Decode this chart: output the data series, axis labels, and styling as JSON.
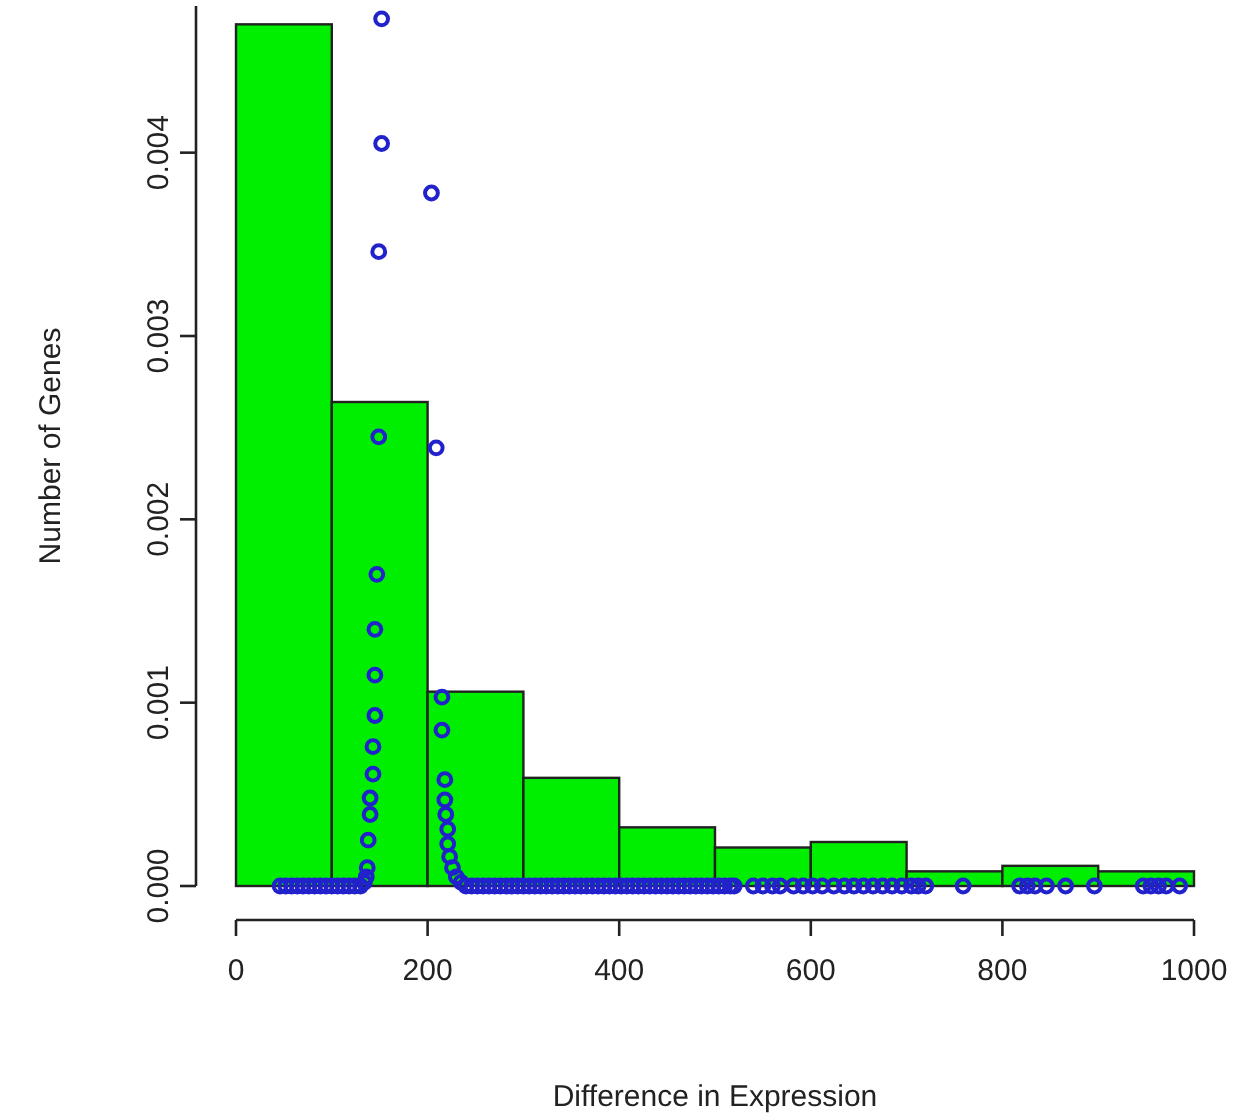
{
  "chart_data": {
    "type": "histogram",
    "xlabel": "Difference in Expression",
    "ylabel": "Number of Genes",
    "bins": [
      0,
      100,
      200,
      300,
      400,
      500,
      600,
      700,
      800,
      900,
      1000
    ],
    "values": [
      0.0047,
      0.00264,
      0.00106,
      0.00059,
      0.00032,
      0.00021,
      0.00024,
      8e-05,
      0.00011,
      8e-05
    ],
    "color": "#00ee00",
    "xlim": [
      0,
      1000
    ],
    "xticks": [
      0,
      200,
      400,
      600,
      800,
      1000
    ],
    "ylim": [
      0,
      0.0048
    ],
    "yticks": [
      {
        "value": 0,
        "label": "0.000"
      },
      {
        "value": 0.001,
        "label": "0.001"
      },
      {
        "value": 0.002,
        "label": "0.002"
      },
      {
        "value": 0.003,
        "label": "0.003"
      },
      {
        "value": 0.004,
        "label": "0.004"
      }
    ],
    "grid": false,
    "marker": "circle",
    "series": [
      {
        "type": "scatter",
        "color": "#2222cc",
        "x": [
          46,
          52,
          58,
          64,
          70,
          76,
          82,
          88,
          94,
          100,
          106,
          112,
          118,
          124,
          130,
          134,
          136,
          137,
          138,
          140,
          140,
          143,
          143,
          145,
          145,
          145,
          147,
          149,
          149,
          152,
          152,
          204,
          209,
          215,
          215,
          218,
          218,
          219,
          221,
          221,
          223,
          226,
          230,
          235,
          240,
          246,
          252,
          258,
          264,
          270,
          276,
          282,
          288,
          294,
          300,
          306,
          312,
          318,
          324,
          330,
          336,
          342,
          348,
          354,
          360,
          366,
          372,
          378,
          384,
          390,
          396,
          402,
          408,
          414,
          420,
          426,
          432,
          438,
          444,
          450,
          456,
          462,
          468,
          474,
          480,
          486,
          492,
          498,
          504,
          510,
          516,
          520,
          540,
          550,
          560,
          568,
          582,
          592,
          602,
          612,
          624,
          635,
          645,
          655,
          665,
          675,
          685,
          695,
          705,
          712,
          720,
          759,
          818,
          826,
          834,
          846,
          866,
          896,
          947,
          955,
          963,
          971,
          985
        ],
        "values": [
          0,
          0,
          0,
          0,
          0,
          0,
          0,
          0,
          0,
          0,
          0,
          0,
          0,
          0,
          0,
          2e-05,
          5e-05,
          0.0001,
          0.00025,
          0.00039,
          0.00048,
          0.00061,
          0.00076,
          0.00093,
          0.00115,
          0.0014,
          0.0017,
          0.00245,
          0.00346,
          0.00405,
          0.00473,
          0.00378,
          0.00239,
          0.00103,
          0.00085,
          0.00058,
          0.00047,
          0.00039,
          0.00031,
          0.00023,
          0.00016,
          0.0001,
          5e-05,
          2e-05,
          0,
          0,
          0,
          0,
          0,
          0,
          0,
          0,
          0,
          0,
          0,
          0,
          0,
          0,
          0,
          0,
          0,
          0,
          0,
          0,
          0,
          0,
          0,
          0,
          0,
          0,
          0,
          0,
          0,
          0,
          0,
          0,
          0,
          0,
          0,
          0,
          0,
          0,
          0,
          0,
          0,
          0,
          0,
          0,
          0,
          0,
          0,
          0,
          0,
          0,
          0,
          0,
          0,
          0,
          0,
          0,
          0,
          0,
          0,
          0,
          0,
          0,
          0,
          0,
          0,
          0,
          0,
          0,
          0,
          0,
          0,
          0,
          0,
          0,
          0,
          0,
          0,
          0,
          0
        ]
      }
    ]
  }
}
